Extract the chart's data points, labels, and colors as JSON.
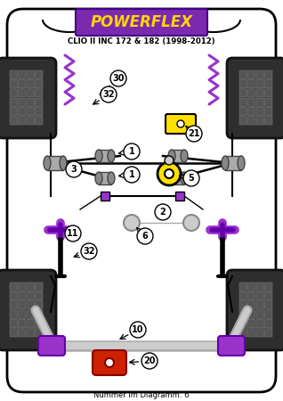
{
  "bg_color": "#ffffff",
  "logo_text": "POWERFLEX",
  "logo_bg": "#7B2AB0",
  "logo_text_color": "#FFD700",
  "subtitle": "CLIO II INC 172 & 182 (1998-2012)",
  "bottom_text": "Nummer im Diagramm: 6",
  "purple": "#9933CC",
  "purple_dark": "#6600AA",
  "yellow": "#FFE000",
  "red": "#CC2200",
  "gray_tire": "#3A3A3A",
  "gray_light": "#AAAAAA",
  "gray_mid": "#888888",
  "gray_dark": "#555555",
  "silver": "#C0C0C0",
  "black": "#000000",
  "white": "#FFFFFF"
}
